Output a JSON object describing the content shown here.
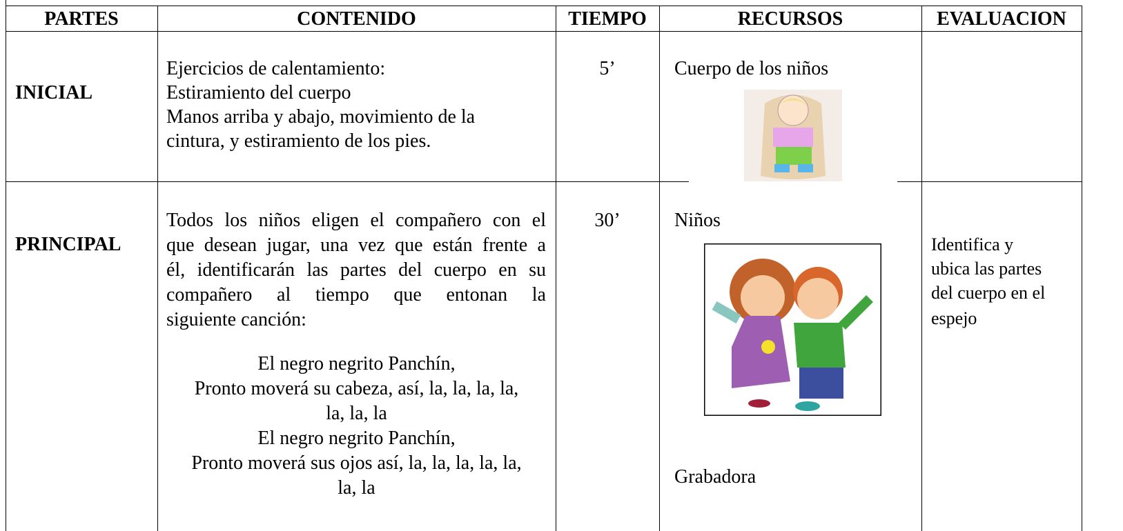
{
  "table": {
    "headers": [
      "PARTES",
      "CONTENIDO",
      "TIEMPO",
      "RECURSOS",
      "EVALUACION"
    ],
    "rows": [
      {
        "parte": "INICIAL",
        "contenido": [
          "Ejercicios de calentamiento:",
          "Estiramiento del cuerpo",
          "Manos arriba y abajo, movimiento de la",
          "cintura, y estiramiento de los pies."
        ],
        "tiempo": "5’",
        "recursos": [
          "Cuerpo de los niños"
        ]
      },
      {
        "parte": "PRINCIPAL",
        "contenido": [
          "Todos los niños eligen el compañero con el",
          "que desean jugar, una vez que están frente a",
          "él, identificarán las partes del cuerpo en su",
          "compañero al tiempo que entonan la",
          "siguiente canción:"
        ],
        "cancion": [
          "El negro negrito Panchín,",
          "Pronto moverá su cabeza, así, la, la, la, la,",
          "la, la, la",
          "El negro negrito Panchín,",
          "Pronto moverá sus ojos así, la, la, la, la, la,",
          "la, la"
        ],
        "tiempo": "30’",
        "recursos": [
          "Niños",
          "Grabadora"
        ],
        "evaluacion": [
          "Identifica y",
          "ubica las partes",
          "del cuerpo en  el",
          "espejo"
        ]
      }
    ]
  }
}
